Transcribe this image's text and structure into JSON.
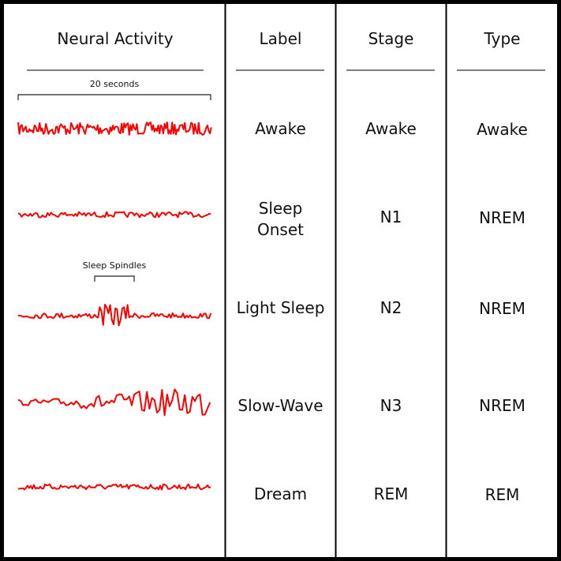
{
  "headers": {
    "neural_activity": "Neural Activity",
    "label": "Label",
    "stage": "Stage",
    "type": "Type"
  },
  "annotations": {
    "scale": "20 seconds",
    "spindles": "Sleep Spindles"
  },
  "rows": [
    {
      "label": "Awake",
      "stage": "Awake",
      "type": "Awake"
    },
    {
      "label": "Sleep\nOnset",
      "stage": "N1",
      "type": "NREM"
    },
    {
      "label": "Light Sleep",
      "stage": "N2",
      "type": "NREM"
    },
    {
      "label": "Slow-Wave",
      "stage": "N3",
      "type": "NREM"
    },
    {
      "label": "Dream",
      "stage": "REM",
      "type": "REM"
    }
  ],
  "colors": {
    "trace": "#ff0000",
    "border": "#000000"
  }
}
